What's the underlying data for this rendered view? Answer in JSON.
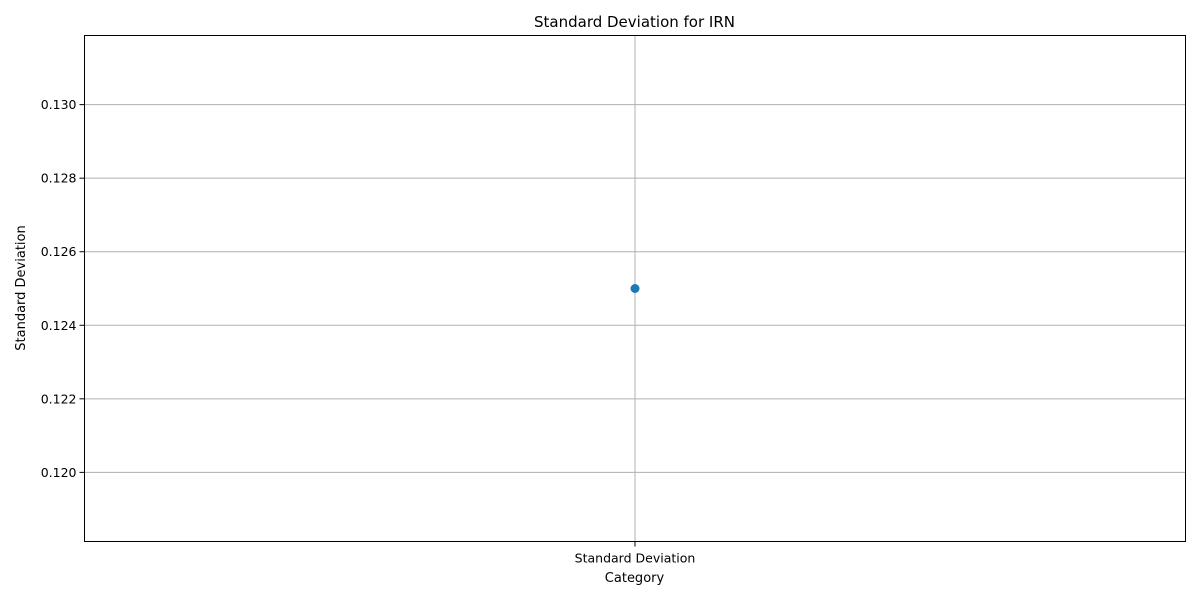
{
  "chart_data": {
    "type": "line",
    "title": "Standard Deviation for IRN",
    "xlabel": "Category",
    "ylabel": "Standard Deviation",
    "categories": [
      "Standard Deviation"
    ],
    "series": [
      {
        "values": [
          0.125
        ],
        "color": "#1f77b4",
        "marker": "circle"
      }
    ],
    "ylim": [
      0.11812,
      0.13188
    ],
    "yticks": [
      0.12,
      0.122,
      0.124,
      0.126,
      0.128,
      0.13
    ],
    "ytick_labels": [
      "0.120",
      "0.122",
      "0.124",
      "0.126",
      "0.128",
      "0.130"
    ],
    "grid": true,
    "grid_color": "#b0b0b0"
  }
}
